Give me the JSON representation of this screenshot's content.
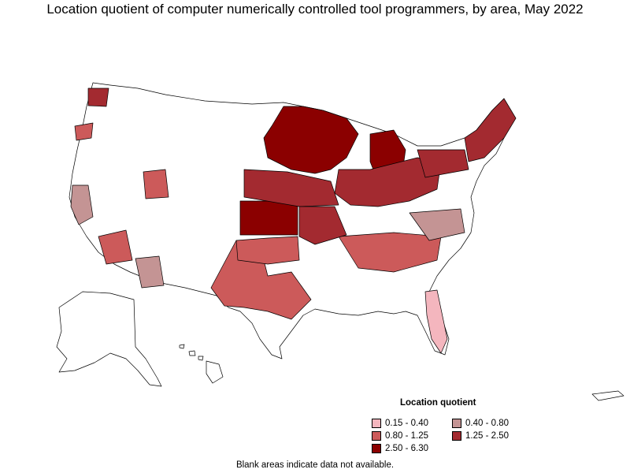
{
  "title": "Location quotient of computer numerically controlled tool programmers, by area, May 2022",
  "legend": {
    "title": "Location quotient",
    "items": [
      {
        "label": "0.15 - 0.40",
        "color": "#f4b6be"
      },
      {
        "label": "0.40 - 0.80",
        "color": "#c49494"
      },
      {
        "label": "0.80 - 1.25",
        "color": "#cc5a5a"
      },
      {
        "label": "1.25 - 2.50",
        "color": "#a32a30"
      },
      {
        "label": "2.50 - 6.30",
        "color": "#8b0000"
      }
    ]
  },
  "footnote": "Blank areas indicate data not available."
}
